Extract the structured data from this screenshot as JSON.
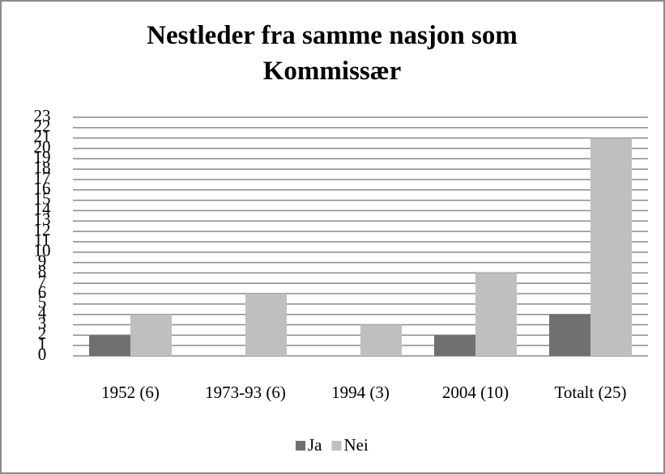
{
  "chart_data": {
    "type": "bar",
    "title": "Nestleder fra samme nasjon som Kommissær",
    "categories": [
      "1952 (6)",
      "1973-93 (6)",
      "1994 (3)",
      "2004 (10)",
      "Totalt (25)"
    ],
    "series": [
      {
        "name": "Ja",
        "color": "#707070",
        "values": [
          2,
          0,
          0,
          2,
          4
        ]
      },
      {
        "name": "Nei",
        "color": "#bfbfbf",
        "values": [
          4,
          6,
          3,
          8,
          21
        ]
      }
    ],
    "ylim": [
      0,
      23
    ],
    "yticks": [
      0,
      1,
      2,
      3,
      4,
      5,
      6,
      7,
      8,
      9,
      10,
      11,
      12,
      13,
      14,
      15,
      16,
      17,
      18,
      19,
      20,
      21,
      22,
      23
    ],
    "grid": true,
    "legend": "bottom"
  }
}
